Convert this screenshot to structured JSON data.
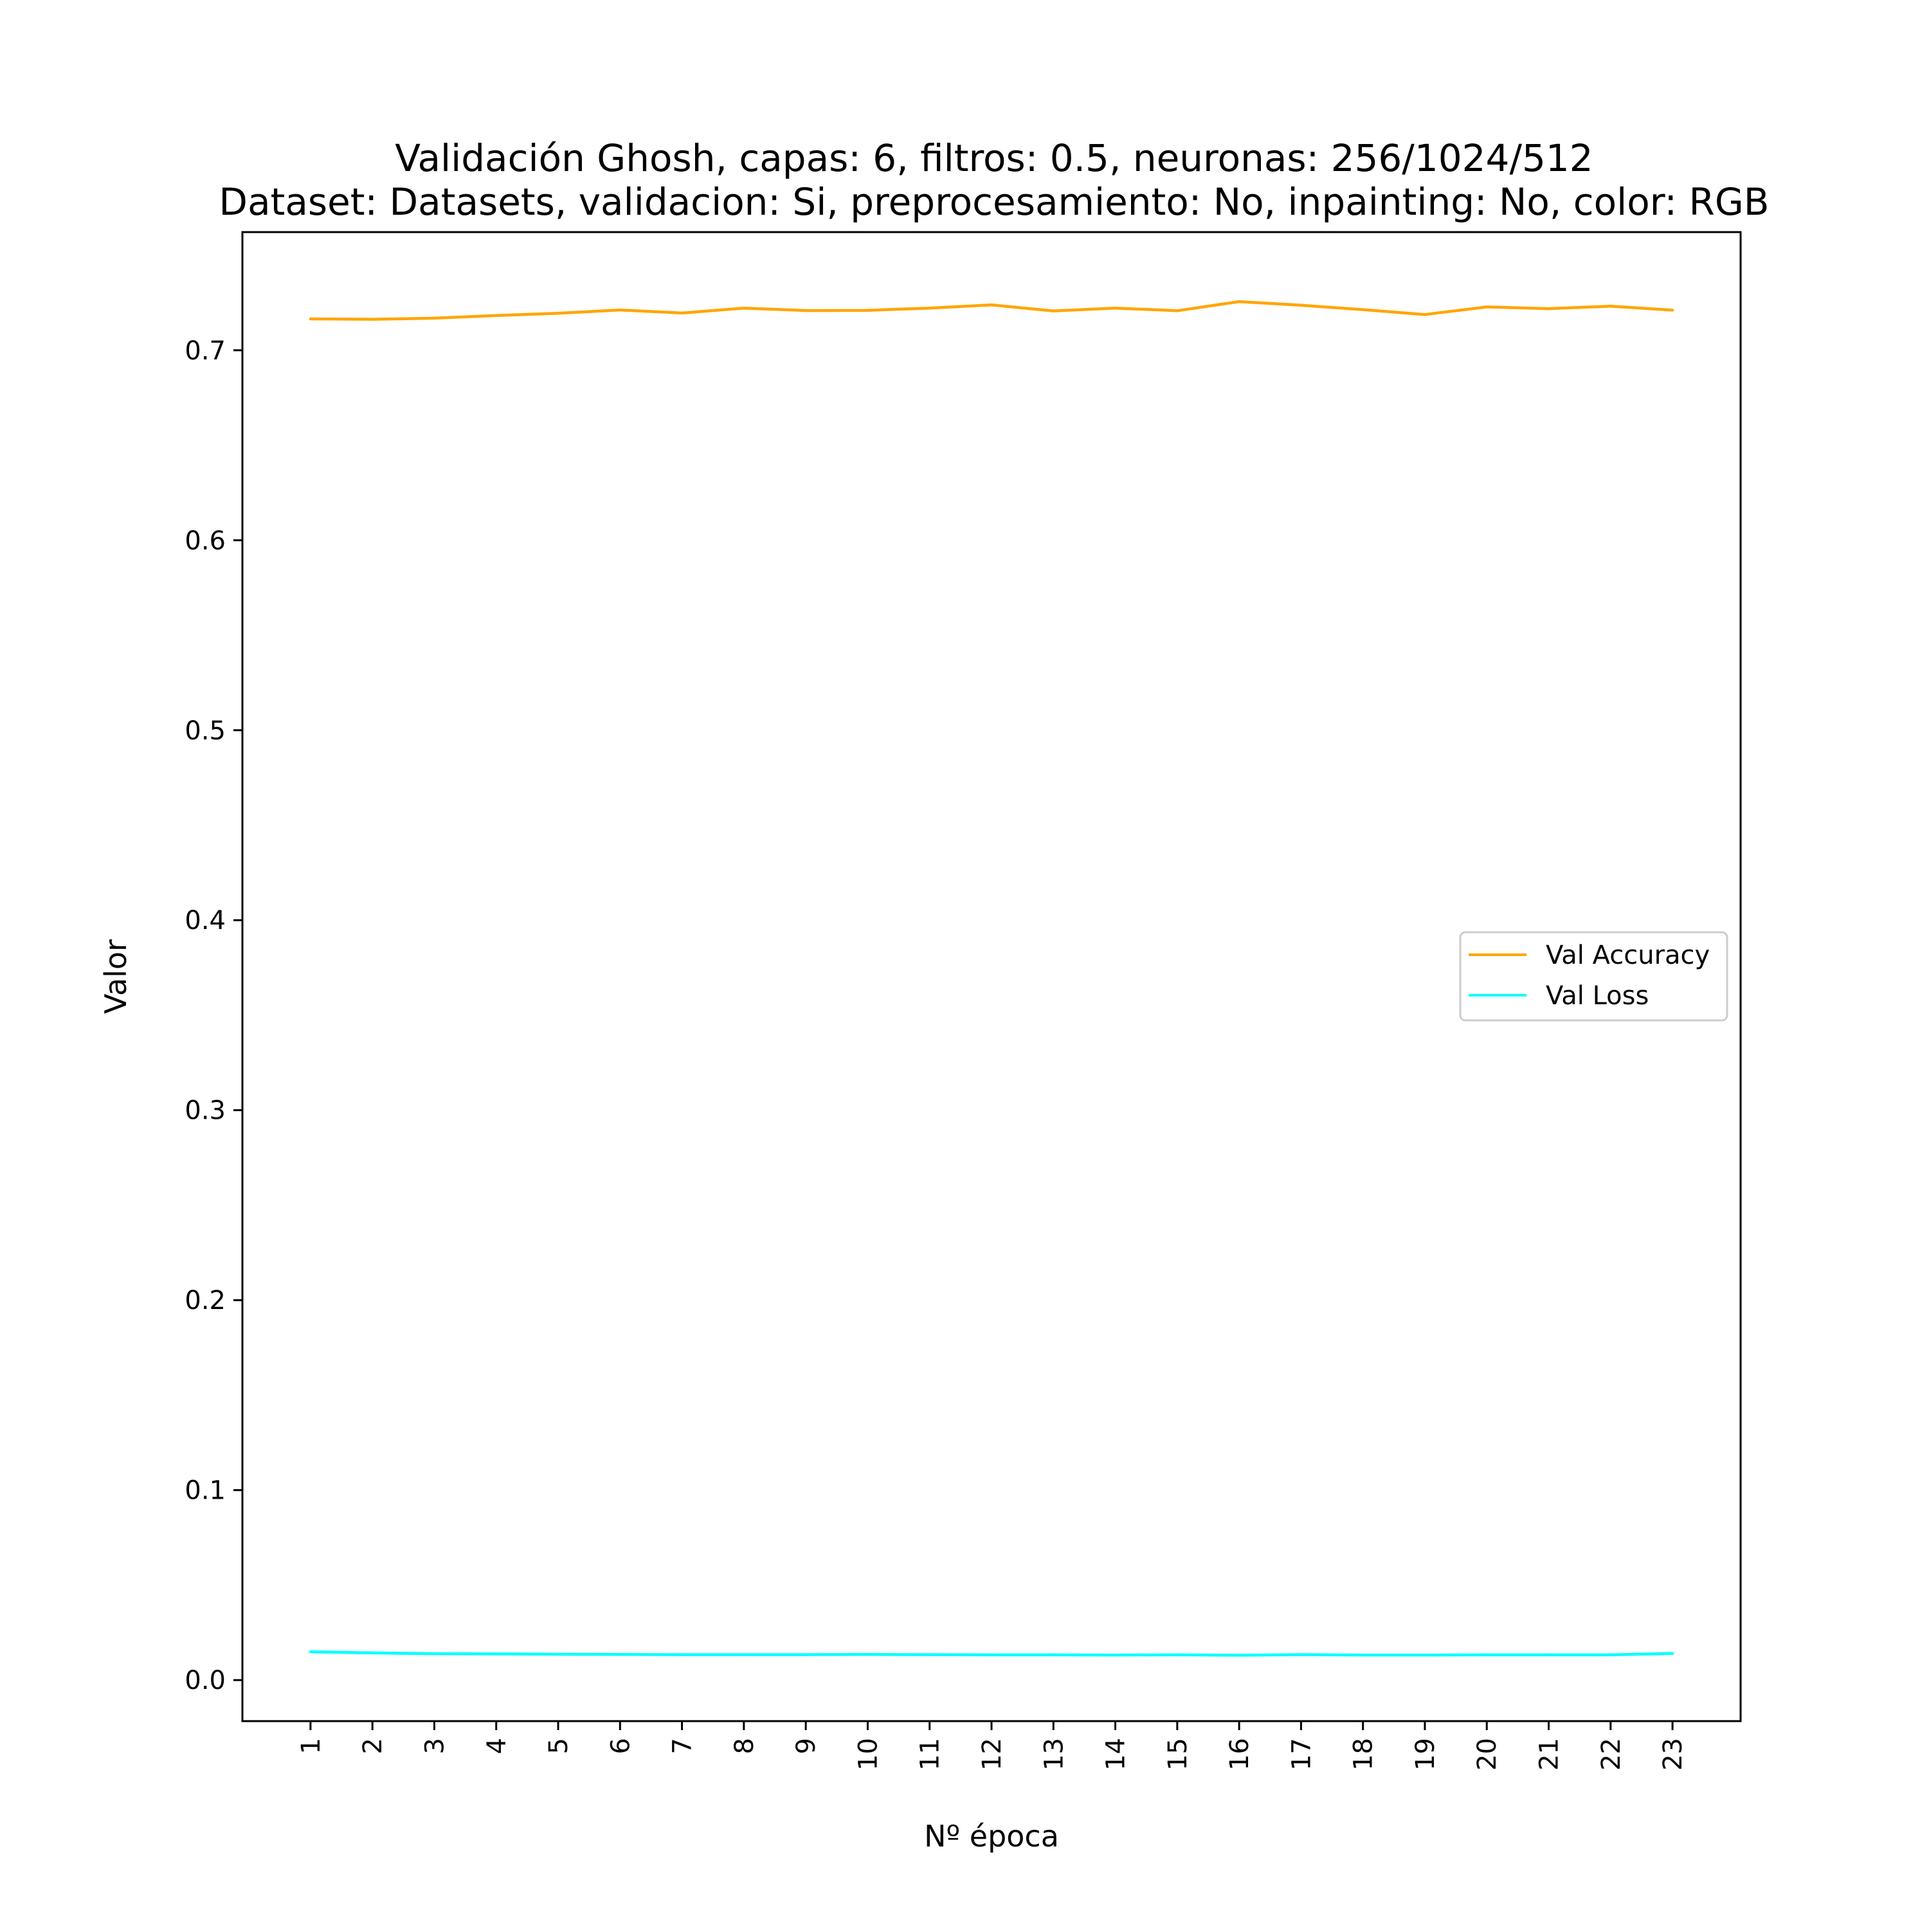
{
  "chart_data": {
    "type": "line",
    "title_lines": [
      "Validación Ghosh, capas: 6, filtros: 0.5, neuronas: 256/1024/512",
      "Dataset: Datasets, validacion: Si, preprocesamiento: No, inpainting: No, color: RGB"
    ],
    "xlabel": "Nº época",
    "ylabel": "Valor",
    "x": [
      1,
      2,
      3,
      4,
      5,
      6,
      7,
      8,
      9,
      10,
      11,
      12,
      13,
      14,
      15,
      16,
      17,
      18,
      19,
      20,
      21,
      22,
      23
    ],
    "x_tick_labels": [
      "1",
      "2",
      "3",
      "4",
      "5",
      "6",
      "7",
      "8",
      "9",
      "10",
      "11",
      "12",
      "13",
      "14",
      "15",
      "16",
      "17",
      "18",
      "19",
      "20",
      "21",
      "22",
      "23"
    ],
    "y_ticks": [
      0.0,
      0.1,
      0.2,
      0.3,
      0.4,
      0.5,
      0.6,
      0.7
    ],
    "y_tick_labels": [
      "0.0",
      "0.1",
      "0.2",
      "0.3",
      "0.4",
      "0.5",
      "0.6",
      "0.7"
    ],
    "xlim": [
      -0.1,
      24.1
    ],
    "ylim": [
      -0.0216,
      0.7622
    ],
    "grid": false,
    "legend_position": "center-right",
    "series": [
      {
        "name": "Val Accuracy",
        "color": "#ffa500",
        "values": [
          0.7165,
          0.7163,
          0.7169,
          0.7183,
          0.7195,
          0.7212,
          0.7196,
          0.7222,
          0.7209,
          0.721,
          0.7222,
          0.7239,
          0.7207,
          0.7222,
          0.7208,
          0.7256,
          0.7237,
          0.7214,
          0.7188,
          0.7228,
          0.7219,
          0.7232,
          0.7211
        ]
      },
      {
        "name": "Val Loss",
        "color": "#00ffff",
        "values": [
          0.0149,
          0.0143,
          0.0139,
          0.0138,
          0.0136,
          0.0135,
          0.0134,
          0.0134,
          0.0134,
          0.0135,
          0.0134,
          0.0133,
          0.0133,
          0.0132,
          0.0133,
          0.0131,
          0.0134,
          0.0132,
          0.0132,
          0.0133,
          0.0133,
          0.0133,
          0.014
        ]
      }
    ]
  }
}
